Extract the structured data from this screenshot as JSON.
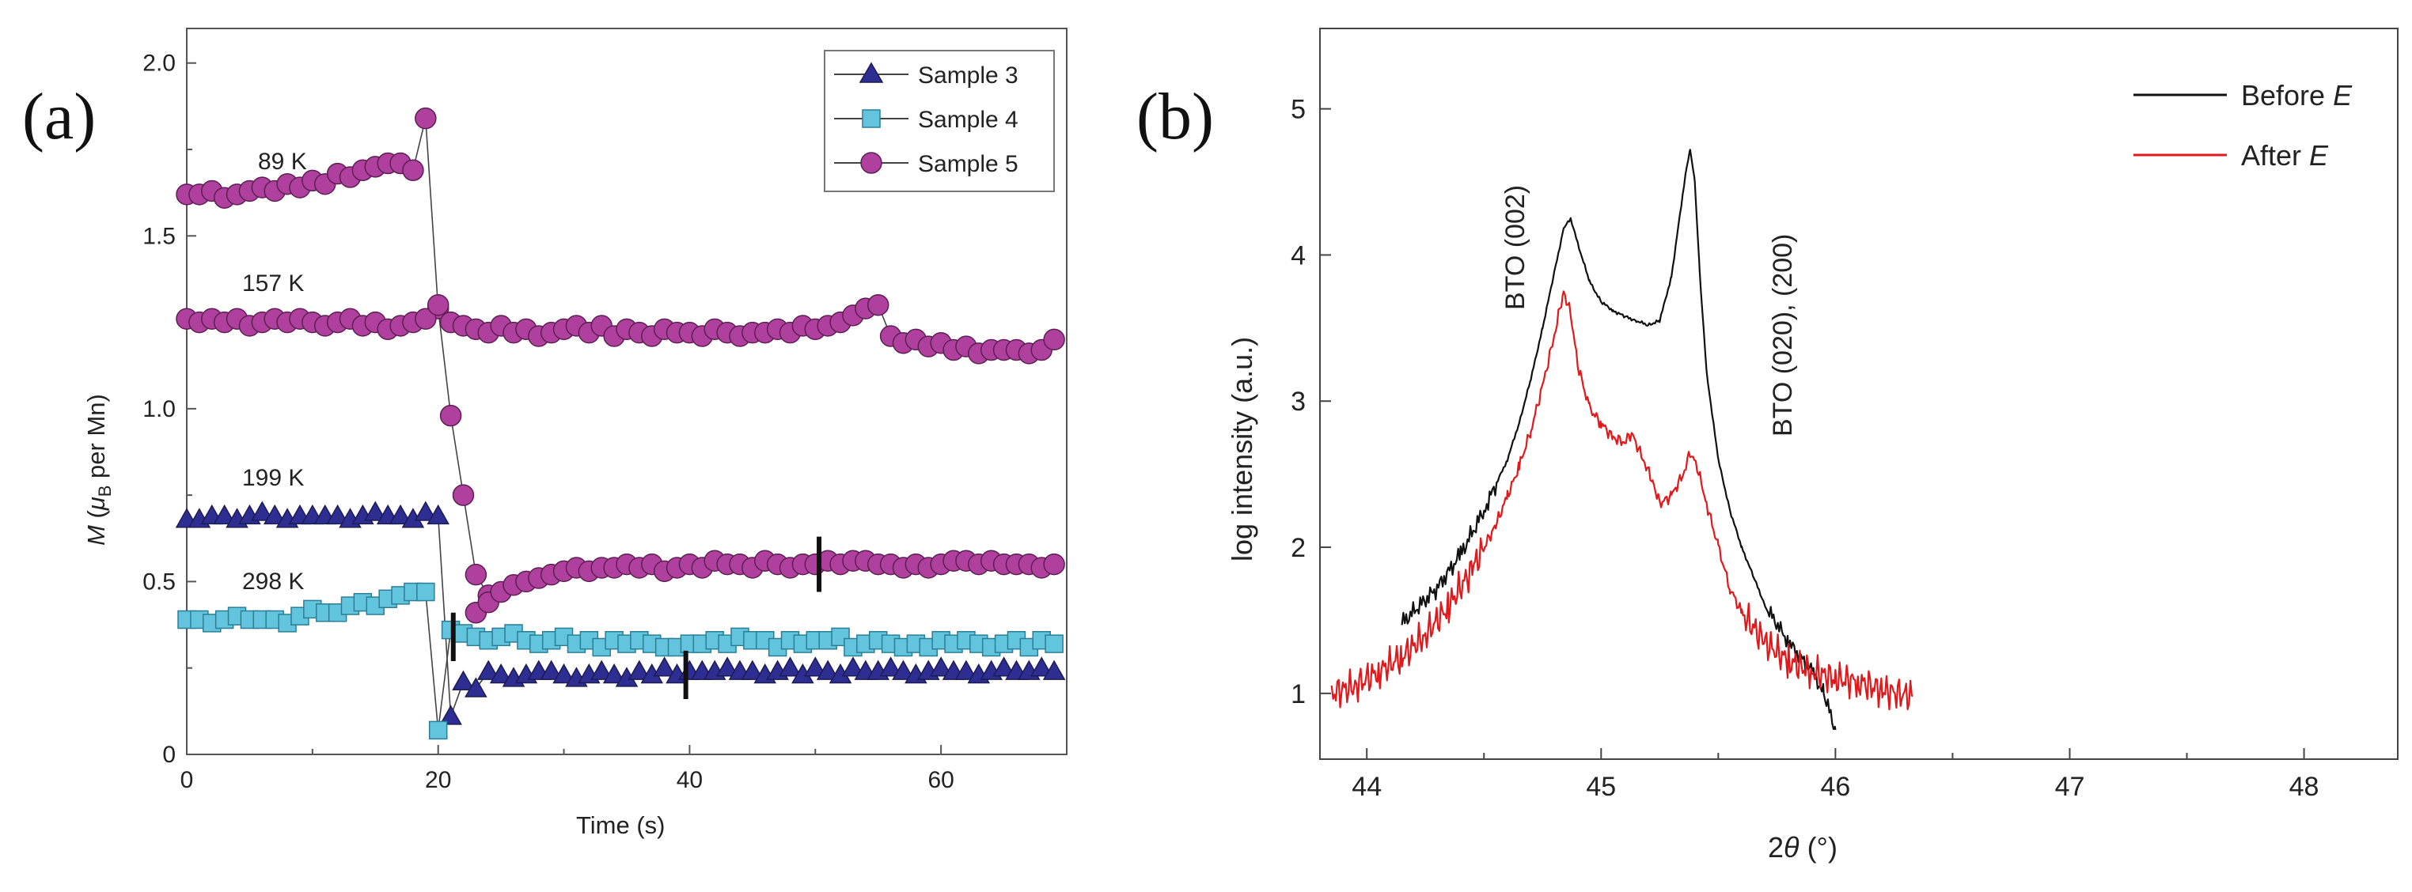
{
  "chart_data": [
    {
      "panel_label": "(a)",
      "type": "scatter",
      "xlabel": "Time (s)",
      "ylabel_parts": [
        "M",
        " (",
        "μ",
        "B",
        " per Mn)"
      ],
      "xlim": [
        0,
        70
      ],
      "ylim": [
        0,
        2.1
      ],
      "xticks": [
        0,
        20,
        40,
        60
      ],
      "yticks": [
        "0",
        "0.5",
        "1.0",
        "1.5",
        "2.0"
      ],
      "legend": [
        "Sample 3",
        "Sample 4",
        "Sample 5"
      ],
      "temperature_labels": [
        "89 K",
        "157 K",
        "199 K",
        "298 K"
      ],
      "colors": {
        "sample3": "#2e2e92",
        "sample4": "#63c5dd",
        "sample5": "#b0409e",
        "line": "#444444"
      },
      "series": [
        {
          "name": "Sample 5 (89 K)",
          "marker": "circle",
          "x": [
            0,
            1,
            2,
            3,
            4,
            5,
            6,
            7,
            8,
            9,
            10,
            11,
            12,
            13,
            14,
            15,
            16,
            17,
            18,
            19,
            20,
            21,
            22,
            23,
            24
          ],
          "y": [
            1.62,
            1.62,
            1.63,
            1.61,
            1.62,
            1.63,
            1.64,
            1.63,
            1.65,
            1.64,
            1.66,
            1.65,
            1.68,
            1.67,
            1.69,
            1.7,
            1.71,
            1.71,
            1.69,
            1.84,
            1.29,
            0.98,
            0.75,
            0.52,
            0.46
          ]
        },
        {
          "name": "Sample 5 (157 K)",
          "marker": "circle",
          "x": [
            0,
            1,
            2,
            3,
            4,
            5,
            6,
            7,
            8,
            9,
            10,
            11,
            12,
            13,
            14,
            15,
            16,
            17,
            18,
            19,
            20,
            21,
            22,
            23,
            24,
            25,
            26,
            27,
            28,
            29,
            30,
            31,
            32,
            33,
            34,
            35,
            36,
            37,
            38,
            39,
            40,
            41,
            42,
            43,
            44,
            45,
            46,
            47,
            48,
            49,
            50,
            51,
            52,
            53,
            54,
            55,
            56,
            57,
            58,
            59,
            60,
            61,
            62,
            63,
            64,
            65,
            66,
            67,
            68,
            69
          ],
          "y": [
            1.26,
            1.25,
            1.26,
            1.25,
            1.26,
            1.24,
            1.25,
            1.26,
            1.25,
            1.26,
            1.25,
            1.24,
            1.25,
            1.26,
            1.24,
            1.25,
            1.23,
            1.24,
            1.25,
            1.26,
            1.3,
            1.25,
            1.24,
            1.23,
            1.22,
            1.24,
            1.22,
            1.23,
            1.21,
            1.22,
            1.23,
            1.24,
            1.22,
            1.24,
            1.21,
            1.23,
            1.22,
            1.21,
            1.23,
            1.22,
            1.22,
            1.21,
            1.23,
            1.22,
            1.21,
            1.22,
            1.22,
            1.23,
            1.22,
            1.24,
            1.23,
            1.24,
            1.25,
            1.27,
            1.29,
            1.3,
            1.21,
            1.19,
            1.2,
            1.18,
            1.19,
            1.17,
            1.18,
            1.16,
            1.17,
            1.17,
            1.17,
            1.16,
            1.17,
            1.2
          ]
        },
        {
          "name": "Sample 5 (lower)",
          "marker": "circle",
          "x": [
            23,
            24,
            25,
            26,
            27,
            28,
            29,
            30,
            31,
            32,
            33,
            34,
            35,
            36,
            37,
            38,
            39,
            40,
            41,
            42,
            43,
            44,
            45,
            46,
            47,
            48,
            49,
            50,
            51,
            52,
            53,
            54,
            55,
            56,
            57,
            58,
            59,
            60,
            61,
            62,
            63,
            64,
            65,
            66,
            67,
            68,
            69
          ],
          "y": [
            0.41,
            0.44,
            0.47,
            0.49,
            0.5,
            0.51,
            0.52,
            0.53,
            0.54,
            0.53,
            0.54,
            0.54,
            0.55,
            0.54,
            0.55,
            0.53,
            0.54,
            0.55,
            0.54,
            0.56,
            0.55,
            0.55,
            0.54,
            0.56,
            0.55,
            0.54,
            0.55,
            0.55,
            0.56,
            0.55,
            0.56,
            0.56,
            0.55,
            0.55,
            0.54,
            0.55,
            0.54,
            0.55,
            0.56,
            0.56,
            0.55,
            0.56,
            0.55,
            0.55,
            0.55,
            0.54,
            0.55
          ]
        },
        {
          "name": "Sample 3",
          "marker": "triangle",
          "x": [
            0,
            1,
            2,
            3,
            4,
            5,
            6,
            7,
            8,
            9,
            10,
            11,
            12,
            13,
            14,
            15,
            16,
            17,
            18,
            19,
            20,
            21,
            22,
            23,
            24,
            25,
            26,
            27,
            28,
            29,
            30,
            31,
            32,
            33,
            34,
            35,
            36,
            37,
            38,
            39,
            40,
            41,
            42,
            43,
            44,
            45,
            46,
            47,
            48,
            49,
            50,
            51,
            52,
            53,
            54,
            55,
            56,
            57,
            58,
            59,
            60,
            61,
            62,
            63,
            64,
            65,
            66,
            67,
            68,
            69
          ],
          "y": [
            0.68,
            0.68,
            0.69,
            0.69,
            0.68,
            0.69,
            0.7,
            0.69,
            0.68,
            0.69,
            0.69,
            0.69,
            0.69,
            0.68,
            0.69,
            0.7,
            0.69,
            0.69,
            0.68,
            0.7,
            0.69,
            0.11,
            0.21,
            0.19,
            0.24,
            0.23,
            0.22,
            0.23,
            0.24,
            0.24,
            0.23,
            0.22,
            0.23,
            0.24,
            0.23,
            0.22,
            0.24,
            0.23,
            0.25,
            0.23,
            0.24,
            0.24,
            0.24,
            0.25,
            0.24,
            0.24,
            0.23,
            0.24,
            0.25,
            0.23,
            0.25,
            0.24,
            0.23,
            0.25,
            0.24,
            0.24,
            0.25,
            0.24,
            0.23,
            0.24,
            0.25,
            0.24,
            0.24,
            0.23,
            0.24,
            0.25,
            0.24,
            0.24,
            0.25,
            0.24
          ]
        },
        {
          "name": "Sample 4",
          "marker": "square",
          "x": [
            0,
            1,
            2,
            3,
            4,
            5,
            6,
            7,
            8,
            9,
            10,
            11,
            12,
            13,
            14,
            15,
            16,
            17,
            18,
            19,
            20,
            21,
            22,
            23,
            24,
            25,
            26,
            27,
            28,
            29,
            30,
            31,
            32,
            33,
            34,
            35,
            36,
            37,
            38,
            39,
            40,
            41,
            42,
            43,
            44,
            45,
            46,
            47,
            48,
            49,
            50,
            51,
            52,
            53,
            54,
            55,
            56,
            57,
            58,
            59,
            60,
            61,
            62,
            63,
            64,
            65,
            66,
            67,
            68,
            69
          ],
          "y": [
            0.39,
            0.39,
            0.38,
            0.39,
            0.4,
            0.39,
            0.39,
            0.39,
            0.38,
            0.4,
            0.42,
            0.41,
            0.41,
            0.43,
            0.44,
            0.43,
            0.45,
            0.46,
            0.47,
            0.47,
            0.07,
            0.36,
            0.35,
            0.34,
            0.33,
            0.34,
            0.35,
            0.33,
            0.32,
            0.33,
            0.34,
            0.32,
            0.33,
            0.31,
            0.33,
            0.32,
            0.33,
            0.32,
            0.31,
            0.31,
            0.32,
            0.32,
            0.33,
            0.32,
            0.34,
            0.33,
            0.33,
            0.31,
            0.33,
            0.32,
            0.33,
            0.33,
            0.34,
            0.31,
            0.32,
            0.33,
            0.32,
            0.31,
            0.32,
            0.31,
            0.33,
            0.32,
            0.33,
            0.32,
            0.31,
            0.32,
            0.33,
            0.31,
            0.33,
            0.32
          ]
        }
      ],
      "error_bars": [
        {
          "x": 21.2,
          "y": 0.34,
          "half_height": 0.07
        },
        {
          "x": 39.7,
          "y": 0.23,
          "half_height": 0.07
        },
        {
          "x": 50.3,
          "y": 0.55,
          "half_height": 0.08
        }
      ]
    },
    {
      "panel_label": "(b)",
      "type": "line",
      "xlabel_parts": [
        "2",
        "θ",
        " (°)"
      ],
      "ylabel": "log intensity (a.u.)",
      "xlim": [
        43.8,
        48.4
      ],
      "ylim": [
        0.55,
        5.55
      ],
      "xticks": [
        "44",
        "45",
        "46",
        "47",
        "48"
      ],
      "yticks": [
        "1",
        "2",
        "3",
        "4",
        "5"
      ],
      "legend_before": [
        "Before ",
        "E"
      ],
      "legend_after": [
        "After ",
        "E"
      ],
      "peak_labels": [
        "BTO (002)",
        "BTO (020), (200)"
      ],
      "colors": {
        "before": "#111111",
        "after": "#e0191c"
      },
      "series": [
        {
          "name": "Before E",
          "x": [
            44.15,
            44.3,
            44.4,
            44.5,
            44.6,
            44.65,
            44.7,
            44.75,
            44.8,
            44.84,
            44.87,
            44.9,
            44.95,
            45.0,
            45.05,
            45.1,
            45.15,
            45.2,
            45.25,
            45.3,
            45.33,
            45.36,
            45.38,
            45.4,
            45.42,
            45.45,
            45.5,
            45.55,
            45.6,
            45.65,
            45.7,
            45.8,
            45.9,
            45.95,
            46.0
          ],
          "y": [
            1.48,
            1.72,
            1.95,
            2.25,
            2.6,
            2.85,
            3.15,
            3.5,
            3.88,
            4.18,
            4.25,
            4.08,
            3.82,
            3.68,
            3.62,
            3.58,
            3.55,
            3.52,
            3.55,
            3.85,
            4.2,
            4.55,
            4.72,
            4.5,
            3.9,
            3.2,
            2.6,
            2.25,
            2.0,
            1.8,
            1.6,
            1.35,
            1.15,
            1.0,
            0.75
          ]
        },
        {
          "name": "After E",
          "x": [
            43.85,
            43.95,
            44.05,
            44.15,
            44.25,
            44.35,
            44.45,
            44.55,
            44.6,
            44.65,
            44.7,
            44.75,
            44.8,
            44.84,
            44.87,
            44.9,
            44.95,
            45.0,
            45.05,
            45.1,
            45.13,
            45.18,
            45.22,
            45.25,
            45.3,
            45.35,
            45.38,
            45.41,
            45.45,
            45.5,
            45.55,
            45.6,
            45.7,
            45.8,
            45.9,
            46.0,
            46.1,
            46.2,
            46.33
          ],
          "y": [
            1.0,
            1.05,
            1.15,
            1.25,
            1.4,
            1.6,
            1.85,
            2.15,
            2.35,
            2.55,
            2.8,
            3.1,
            3.45,
            3.75,
            3.6,
            3.25,
            2.95,
            2.85,
            2.75,
            2.72,
            2.78,
            2.6,
            2.45,
            2.3,
            2.35,
            2.5,
            2.65,
            2.55,
            2.3,
            2.0,
            1.72,
            1.55,
            1.35,
            1.22,
            1.15,
            1.1,
            1.08,
            1.02,
            0.98
          ]
        }
      ]
    }
  ]
}
